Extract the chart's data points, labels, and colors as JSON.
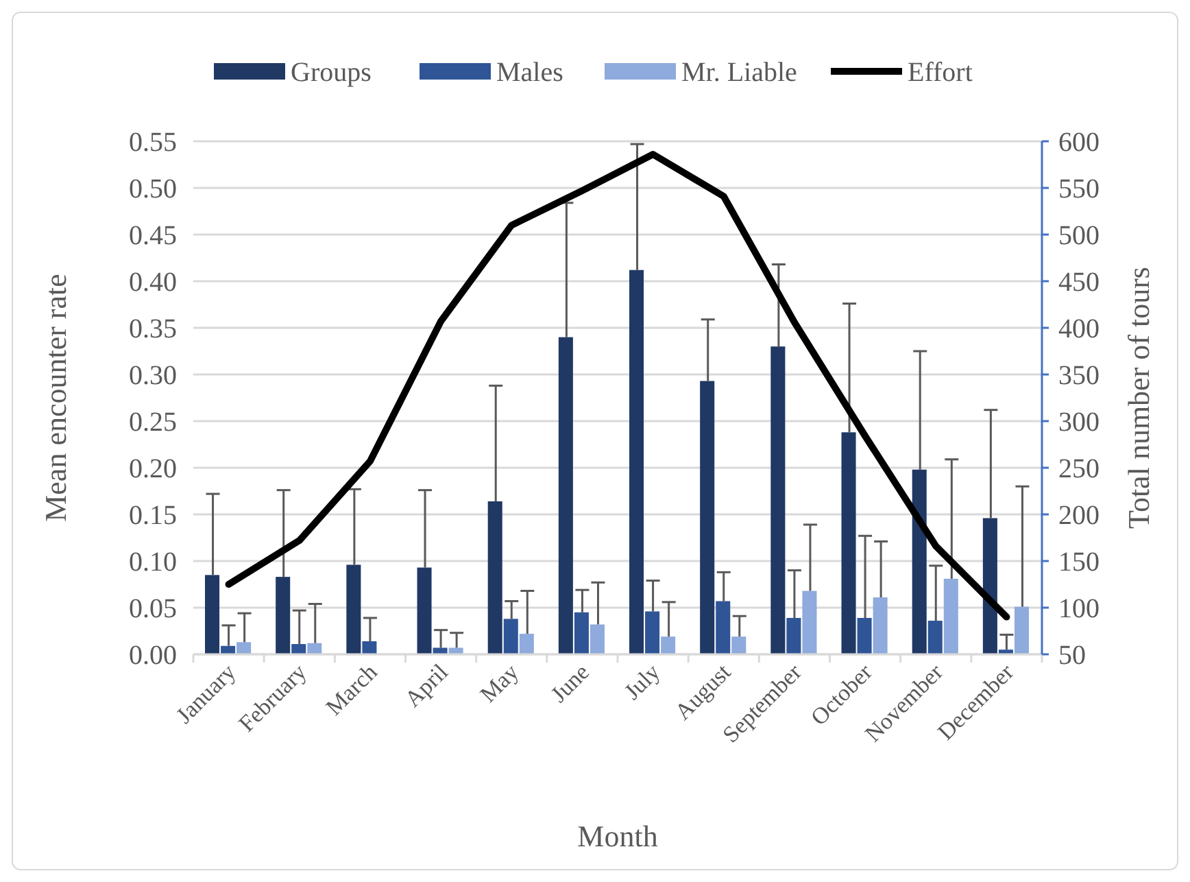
{
  "chart_data": {
    "type": "bar",
    "xlabel": "Month",
    "ylabel": "Mean encounter rate",
    "y2label": "Total number of tours",
    "categories": [
      "January",
      "February",
      "March",
      "April",
      "May",
      "June",
      "July",
      "August",
      "September",
      "October",
      "November",
      "December"
    ],
    "series": [
      {
        "name": "Groups",
        "color": "#203864",
        "values": [
          0.085,
          0.083,
          0.096,
          0.093,
          0.164,
          0.34,
          0.412,
          0.293,
          0.33,
          0.238,
          0.198,
          0.146
        ],
        "errors": [
          [
            0.085,
            0.172
          ],
          [
            0.083,
            0.176
          ],
          [
            0.096,
            0.177
          ],
          [
            0.093,
            0.176
          ],
          [
            0.164,
            0.288
          ],
          [
            0.34,
            0.484
          ],
          [
            0.412,
            0.547
          ],
          [
            0.293,
            0.359
          ],
          [
            0.33,
            0.418
          ],
          [
            0.238,
            0.376
          ],
          [
            0.198,
            0.325
          ],
          [
            0.146,
            0.262
          ]
        ]
      },
      {
        "name": "Males",
        "color": "#2f5597",
        "values": [
          0.009,
          0.011,
          0.014,
          0.007,
          0.038,
          0.045,
          0.046,
          0.057,
          0.039,
          0.039,
          0.036,
          0.005
        ],
        "errors": [
          [
            0.009,
            0.031
          ],
          [
            0.011,
            0.047
          ],
          [
            0.014,
            0.039
          ],
          [
            0.007,
            0.026
          ],
          [
            0.038,
            0.057
          ],
          [
            0.045,
            0.069
          ],
          [
            0.046,
            0.079
          ],
          [
            0.057,
            0.088
          ],
          [
            0.039,
            0.09
          ],
          [
            0.039,
            0.127
          ],
          [
            0.036,
            0.095
          ],
          [
            0.005,
            0.021
          ]
        ]
      },
      {
        "name": "Mr. Liable",
        "color": "#8faadc",
        "values": [
          0.013,
          0.012,
          0,
          0.007,
          0.022,
          0.032,
          0.019,
          0.019,
          0.068,
          0.061,
          0.081,
          0.051
        ],
        "errors": [
          [
            0.013,
            0.044
          ],
          [
            0.012,
            0.054
          ],
          null,
          [
            0.007,
            0.023
          ],
          [
            0.022,
            0.068
          ],
          [
            0.032,
            0.077
          ],
          [
            0.019,
            0.056
          ],
          [
            0.019,
            0.041
          ],
          [
            0.068,
            0.139
          ],
          [
            0.061,
            0.121
          ],
          [
            0.081,
            0.209
          ],
          [
            0.051,
            0.18
          ]
        ]
      },
      {
        "name": "Effort",
        "type": "line",
        "axis": "y2",
        "color": "#000000",
        "values": [
          125,
          172,
          257,
          407,
          510,
          547,
          586,
          541,
          406,
          284,
          166,
          90
        ]
      }
    ],
    "ylim": [
      0,
      0.55
    ],
    "yticks": [
      {
        "value": 0,
        "label": "0.00"
      },
      {
        "value": 0.05,
        "label": "0.05"
      },
      {
        "value": 0.1,
        "label": "0.10"
      },
      {
        "value": 0.15,
        "label": "0.15"
      },
      {
        "value": 0.2,
        "label": "0.20"
      },
      {
        "value": 0.25,
        "label": "0.25"
      },
      {
        "value": 0.3,
        "label": "0.30"
      },
      {
        "value": 0.35,
        "label": "0.35"
      },
      {
        "value": 0.4,
        "label": "0.40"
      },
      {
        "value": 0.45,
        "label": "0.45"
      },
      {
        "value": 0.5,
        "label": "0.50"
      },
      {
        "value": 0.55,
        "label": "0.55"
      }
    ],
    "y2lim": [
      50,
      600
    ],
    "y2ticks": [
      50,
      100,
      150,
      200,
      250,
      300,
      350,
      400,
      450,
      500,
      550,
      600
    ],
    "grid": "y",
    "legend": "top",
    "marker": "none",
    "line_style": "solid"
  }
}
